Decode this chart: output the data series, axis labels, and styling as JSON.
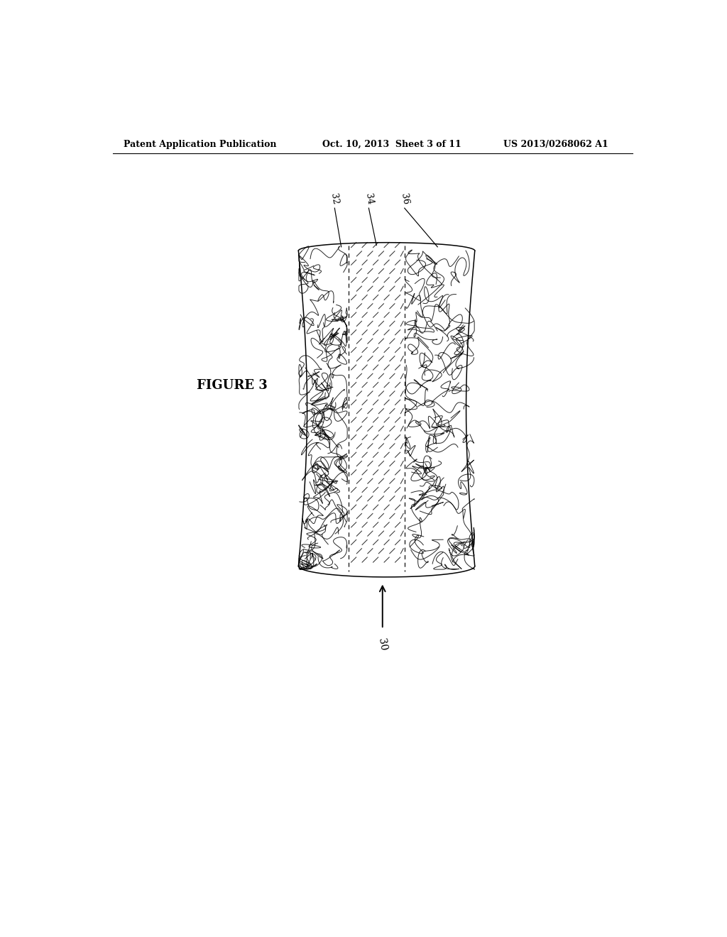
{
  "bg_color": "#ffffff",
  "header_left": "Patent Application Publication",
  "header_mid": "Oct. 10, 2013  Sheet 3 of 11",
  "header_right": "US 2013/0268062 A1",
  "figure_label": "FIGURE 3",
  "label_30": "30",
  "label_32": "32",
  "label_34": "34",
  "label_36": "36",
  "fig_width": 10.24,
  "fig_height": 13.2,
  "dpi": 100
}
